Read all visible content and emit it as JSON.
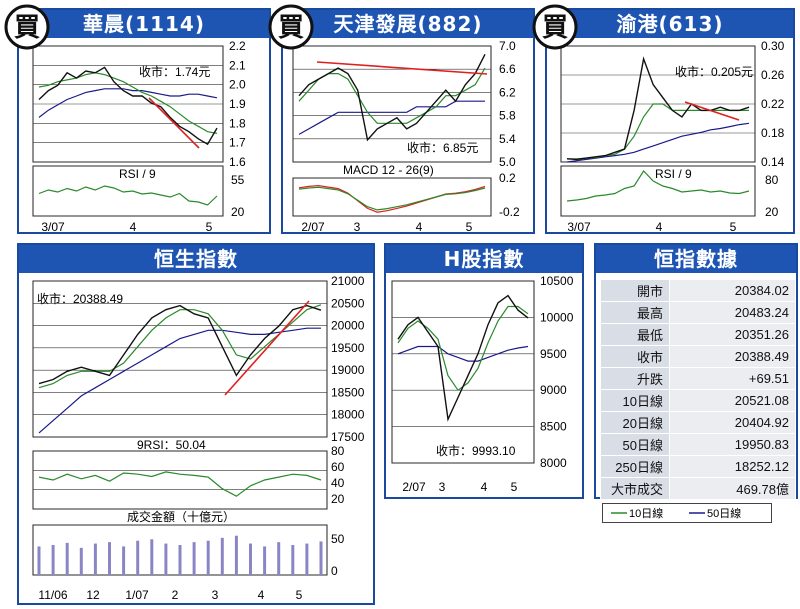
{
  "colors": {
    "header": "#1e55b3",
    "price": "#111111",
    "ma10": "#2a8a2a",
    "ma50": "#1a1a8a",
    "trend": "#e02020",
    "rsi": "#2a8a2a",
    "volume": "#8a86c6"
  },
  "buy_label": "買",
  "charts": {
    "wahsing": {
      "title": "華晨(1114)",
      "close_label": "收市：1.74元",
      "y_ticks": [
        "2.2",
        "2.1",
        "2.0",
        "1.9",
        "1.8",
        "1.7",
        "1.6"
      ],
      "x_labels": [
        "3/07",
        "4",
        "5"
      ],
      "rsi_label": "RSI / 9",
      "rsi_ticks": [
        "55",
        "20"
      ]
    },
    "tianjin": {
      "title": "天津發展(882)",
      "close_label": "收市：6.85元",
      "y_ticks": [
        "7.0",
        "6.6",
        "6.2",
        "5.8",
        "5.4",
        "5.0"
      ],
      "x_labels": [
        "2/07",
        "3",
        "4",
        "5"
      ],
      "macd_label": "MACD 12 - 26(9)",
      "macd_ticks": [
        "0.2",
        "-0.2"
      ]
    },
    "yugang": {
      "title": "渝港(613)",
      "close_label": "收市：0.205元",
      "y_ticks": [
        "0.30",
        "0.26",
        "0.22",
        "0.18",
        "0.14"
      ],
      "x_labels": [
        "3/07",
        "4",
        "5"
      ],
      "rsi_label": "RSI / 9",
      "rsi_ticks": [
        "80",
        "20"
      ]
    },
    "hsi": {
      "title": "恒生指數",
      "close_label": "收市：20388.49",
      "y_ticks": [
        "21000",
        "20500",
        "20000",
        "19500",
        "19000",
        "18500",
        "18000",
        "17500"
      ],
      "rsi_label": "9RSI：50.04",
      "rsi_ticks": [
        "80",
        "60",
        "40",
        "20"
      ],
      "volume_label": "成交金額（十億元）",
      "volume_ticks": [
        "50",
        "0"
      ],
      "x_labels": [
        "11/06",
        "12",
        "1/07",
        "2",
        "3",
        "4",
        "5"
      ]
    },
    "hshares": {
      "title": "H股指數",
      "close_label": "收市：9993.10",
      "y_ticks": [
        "10500",
        "10000",
        "9500",
        "9000",
        "8500",
        "8000"
      ],
      "x_labels": [
        "2/07",
        "3",
        "4",
        "5"
      ]
    }
  },
  "stats": {
    "title": "恒指數據",
    "rows": [
      {
        "label": "開市",
        "value": "20384.02"
      },
      {
        "label": "最高",
        "value": "20483.24"
      },
      {
        "label": "最低",
        "value": "20351.26"
      },
      {
        "label": "收市",
        "value": "20388.49"
      },
      {
        "label": "升跌",
        "value": "+69.51"
      },
      {
        "label": "10日線",
        "value": "20521.08"
      },
      {
        "label": "20日線",
        "value": "20404.92"
      },
      {
        "label": "50日線",
        "value": "19950.83"
      },
      {
        "label": "250日線",
        "value": "18252.12"
      },
      {
        "label": "大市成交",
        "value": "469.78億"
      }
    ],
    "legend": {
      "ma10": "10日線",
      "ma50": "50日線"
    }
  },
  "chart_data": [
    {
      "type": "line",
      "title": "華晨(1114)",
      "ylim": [
        1.55,
        2.2
      ],
      "series": [
        {
          "name": "",
          "values": [
            1.9,
            1.95,
            1.98,
            2.05,
            2.02,
            2.06,
            2.05,
            2.08,
            2.0,
            1.95,
            1.92,
            1.92,
            1.88,
            1.86,
            1.8,
            1.75,
            1.72,
            1.68,
            1.65,
            1.74
          ]
        },
        {
          "name": "",
          "values": [
            1.97,
            1.98,
            2.0,
            2.01,
            2.02,
            2.04,
            2.05,
            2.04,
            2.02,
            2.0,
            1.97,
            1.94,
            1.92,
            1.89,
            1.86,
            1.82,
            1.78,
            1.75,
            1.72,
            1.71
          ]
        },
        {
          "name": "",
          "values": [
            1.8,
            1.84,
            1.87,
            1.9,
            1.92,
            1.94,
            1.95,
            1.96,
            1.96,
            1.96,
            1.95,
            1.95,
            1.94,
            1.93,
            1.92,
            1.92,
            1.93,
            1.93,
            1.92,
            1.91
          ]
        }
      ],
      "rsi": {
        "ylim": [
          0,
          100
        ],
        "values": [
          45,
          52,
          48,
          55,
          50,
          58,
          52,
          60,
          56,
          48,
          50,
          44,
          46,
          42,
          38,
          45,
          30,
          28,
          22,
          40
        ]
      }
    },
    {
      "type": "line",
      "title": "天津發展(882)",
      "ylim": [
        4.9,
        7.0
      ],
      "series": [
        {
          "name": "",
          "values": [
            6.1,
            6.3,
            6.4,
            6.5,
            6.6,
            6.5,
            6.2,
            5.3,
            5.5,
            5.6,
            5.7,
            5.5,
            5.6,
            5.8,
            6.0,
            6.2,
            6.0,
            6.3,
            6.5,
            6.85
          ]
        },
        {
          "name": "",
          "values": [
            6.0,
            6.2,
            6.4,
            6.5,
            6.5,
            6.4,
            6.1,
            5.8,
            5.6,
            5.6,
            5.6,
            5.6,
            5.7,
            5.8,
            5.9,
            6.1,
            6.1,
            6.2,
            6.3,
            6.6
          ]
        },
        {
          "name": "",
          "values": [
            5.4,
            5.5,
            5.6,
            5.7,
            5.8,
            5.8,
            5.8,
            5.8,
            5.8,
            5.8,
            5.8,
            5.8,
            5.9,
            5.9,
            5.9,
            5.9,
            6.0,
            6.0,
            6.0,
            6.0
          ]
        }
      ],
      "macd": {
        "ylim": [
          -0.25,
          0.25
        ],
        "values": [
          0.12,
          0.14,
          0.15,
          0.13,
          0.11,
          0.05,
          -0.05,
          -0.15,
          -0.2,
          -0.18,
          -0.15,
          -0.12,
          -0.08,
          -0.04,
          0.0,
          0.04,
          0.05,
          0.07,
          0.1,
          0.14
        ]
      }
    },
    {
      "type": "line",
      "title": "渝港(613)",
      "ylim": [
        0.12,
        0.3
      ],
      "series": [
        {
          "name": "",
          "values": [
            0.125,
            0.124,
            0.126,
            0.128,
            0.13,
            0.135,
            0.14,
            0.2,
            0.28,
            0.24,
            0.22,
            0.2,
            0.19,
            0.21,
            0.2,
            0.2,
            0.205,
            0.2,
            0.2,
            0.205
          ]
        },
        {
          "name": "",
          "values": [
            0.125,
            0.125,
            0.126,
            0.127,
            0.13,
            0.132,
            0.14,
            0.16,
            0.19,
            0.21,
            0.21,
            0.2,
            0.2,
            0.2,
            0.2,
            0.2,
            0.2,
            0.2,
            0.2,
            0.2
          ]
        },
        {
          "name": "",
          "values": [
            0.12,
            0.122,
            0.124,
            0.126,
            0.128,
            0.13,
            0.132,
            0.135,
            0.14,
            0.145,
            0.15,
            0.155,
            0.16,
            0.163,
            0.166,
            0.17,
            0.172,
            0.175,
            0.178,
            0.18
          ]
        }
      ],
      "rsi": {
        "ylim": [
          0,
          100
        ],
        "values": [
          30,
          32,
          35,
          40,
          42,
          45,
          55,
          60,
          90,
          70,
          60,
          55,
          48,
          50,
          52,
          48,
          50,
          46,
          45,
          50
        ]
      }
    },
    {
      "type": "line",
      "title": "恒生指數",
      "ylim": [
        17300,
        21100
      ],
      "series": [
        {
          "name": "",
          "values": [
            18600,
            18700,
            18900,
            19000,
            18900,
            18800,
            19300,
            19800,
            20200,
            20400,
            20500,
            20300,
            20200,
            19500,
            18800,
            19300,
            19700,
            20000,
            20400,
            20500,
            20388
          ]
        },
        {
          "name": "",
          "values": [
            18500,
            18600,
            18800,
            18900,
            18900,
            18900,
            19100,
            19500,
            19900,
            20200,
            20400,
            20400,
            20300,
            19900,
            19300,
            19200,
            19500,
            19800,
            20100,
            20400,
            20520
          ]
        },
        {
          "name": "",
          "values": [
            17400,
            17700,
            18000,
            18300,
            18500,
            18700,
            18900,
            19100,
            19300,
            19500,
            19700,
            19800,
            19900,
            19900,
            19850,
            19800,
            19800,
            19850,
            19900,
            19950,
            19950
          ]
        }
      ],
      "rsi": {
        "ylim": [
          0,
          100
        ],
        "values": [
          55,
          50,
          60,
          52,
          58,
          48,
          62,
          60,
          56,
          64,
          60,
          58,
          55,
          35,
          22,
          40,
          50,
          55,
          60,
          58,
          50
        ]
      },
      "volume": {
        "ylim": [
          0,
          70
        ],
        "values": [
          40,
          42,
          45,
          38,
          44,
          46,
          40,
          48,
          50,
          44,
          42,
          46,
          48,
          52,
          55,
          44,
          40,
          46,
          42,
          44,
          47
        ]
      }
    },
    {
      "type": "line",
      "title": "H股指數",
      "ylim": [
        8000,
        10500
      ],
      "series": [
        {
          "name": "",
          "values": [
            9700,
            9900,
            10000,
            9800,
            9600,
            8600,
            8900,
            9200,
            9500,
            9900,
            10200,
            10300,
            10100,
            9993
          ]
        },
        {
          "name": "",
          "values": [
            9650,
            9850,
            9950,
            9850,
            9700,
            9200,
            9000,
            9100,
            9300,
            9650,
            9950,
            10150,
            10150,
            10050
          ]
        },
        {
          "name": "",
          "values": [
            9500,
            9550,
            9600,
            9600,
            9600,
            9500,
            9450,
            9400,
            9400,
            9450,
            9500,
            9550,
            9580,
            9600
          ]
        }
      ]
    }
  ]
}
